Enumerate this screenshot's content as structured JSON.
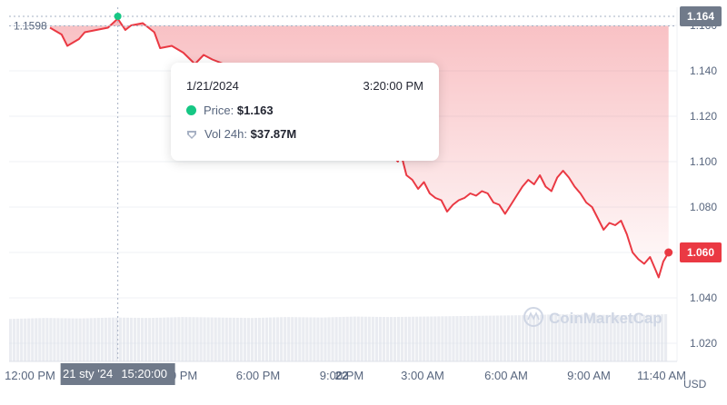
{
  "chart_data": {
    "type": "line",
    "currency": "USD",
    "y_ticks": [
      "1.020",
      "1.040",
      "1.060",
      "1.080",
      "1.100",
      "1.120",
      "1.140",
      "1.160"
    ],
    "ylim": [
      1.012,
      1.168
    ],
    "x_ticks": [
      "12:00 PM",
      "3:00 PM",
      "6:00 PM",
      "9:00 PM",
      "22",
      "3:00 AM",
      "6:00 AM",
      "9:00 AM",
      "11:40 AM"
    ],
    "open_value": 1.1598,
    "open_label": "1.1598",
    "high_value": 1.164,
    "high_label": "1.164",
    "current_value": 1.06,
    "current_label": "1.060",
    "hover": {
      "axis_date": "21 sty '24",
      "axis_time": "15:20:00",
      "date": "1/21/2024",
      "time": "3:20:00 PM",
      "price_label": "Price:",
      "price": "$1.163",
      "volume_label": "Vol 24h:",
      "volume": "$37.87M"
    },
    "series": [
      {
        "values": [
          [
            0.0,
            1.159
          ],
          [
            0.2,
            1.156
          ],
          [
            0.3,
            1.151
          ],
          [
            0.5,
            1.154
          ],
          [
            0.6,
            1.157
          ],
          [
            0.8,
            1.158
          ],
          [
            1.0,
            1.159
          ],
          [
            1.17,
            1.163
          ],
          [
            1.3,
            1.158
          ],
          [
            1.4,
            1.16
          ],
          [
            1.6,
            1.161
          ],
          [
            1.8,
            1.157
          ],
          [
            1.9,
            1.15
          ],
          [
            2.1,
            1.151
          ],
          [
            2.3,
            1.148
          ],
          [
            2.5,
            1.143
          ],
          [
            2.65,
            1.147
          ],
          [
            2.8,
            1.145
          ],
          [
            3.0,
            1.143
          ],
          [
            3.3,
            1.14
          ],
          [
            3.6,
            1.138
          ],
          [
            4.0,
            1.133
          ],
          [
            4.4,
            1.128
          ],
          [
            4.8,
            1.122
          ],
          [
            5.2,
            1.115
          ],
          [
            5.5,
            1.108
          ],
          [
            5.75,
            1.104
          ],
          [
            5.9,
            1.103
          ],
          [
            6.0,
            1.1
          ],
          [
            6.05,
            1.104
          ],
          [
            6.1,
            1.099
          ],
          [
            6.15,
            1.094
          ],
          [
            6.25,
            1.092
          ],
          [
            6.35,
            1.088
          ],
          [
            6.45,
            1.091
          ],
          [
            6.55,
            1.086
          ],
          [
            6.65,
            1.084
          ],
          [
            6.75,
            1.083
          ],
          [
            6.85,
            1.078
          ],
          [
            6.95,
            1.081
          ],
          [
            7.05,
            1.083
          ],
          [
            7.15,
            1.084
          ],
          [
            7.25,
            1.086
          ],
          [
            7.35,
            1.085
          ],
          [
            7.45,
            1.087
          ],
          [
            7.55,
            1.086
          ],
          [
            7.65,
            1.082
          ],
          [
            7.75,
            1.081
          ],
          [
            7.85,
            1.077
          ],
          [
            7.95,
            1.081
          ],
          [
            8.05,
            1.085
          ],
          [
            8.15,
            1.089
          ],
          [
            8.25,
            1.092
          ],
          [
            8.35,
            1.09
          ],
          [
            8.45,
            1.094
          ],
          [
            8.55,
            1.089
          ],
          [
            8.65,
            1.087
          ],
          [
            8.75,
            1.093
          ],
          [
            8.85,
            1.096
          ],
          [
            8.95,
            1.093
          ],
          [
            9.05,
            1.089
          ],
          [
            9.15,
            1.086
          ],
          [
            9.25,
            1.082
          ],
          [
            9.35,
            1.08
          ],
          [
            9.45,
            1.075
          ],
          [
            9.55,
            1.07
          ],
          [
            9.65,
            1.073
          ],
          [
            9.75,
            1.072
          ],
          [
            9.85,
            1.074
          ],
          [
            9.95,
            1.068
          ],
          [
            10.05,
            1.06
          ],
          [
            10.15,
            1.057
          ],
          [
            10.25,
            1.055
          ],
          [
            10.35,
            1.058
          ],
          [
            10.45,
            1.052
          ],
          [
            10.5,
            1.049
          ],
          [
            10.58,
            1.056
          ],
          [
            10.67,
            1.06
          ]
        ]
      }
    ],
    "volume_relative": [
      0.9,
      0.92,
      0.91,
      0.93,
      0.92,
      0.94,
      0.93,
      0.92,
      0.94,
      0.93,
      0.95,
      0.94,
      0.95,
      0.96,
      0.97,
      0.98,
      1.0,
      0.99,
      0.98,
      1.0
    ],
    "colors": {
      "line": "#ea3943",
      "up": "#16c784",
      "grid": "#eff2f5",
      "axis_text": "#58667e",
      "crosshair_label_bg": "#707a8a"
    }
  },
  "watermark": "CoinMarketCap"
}
